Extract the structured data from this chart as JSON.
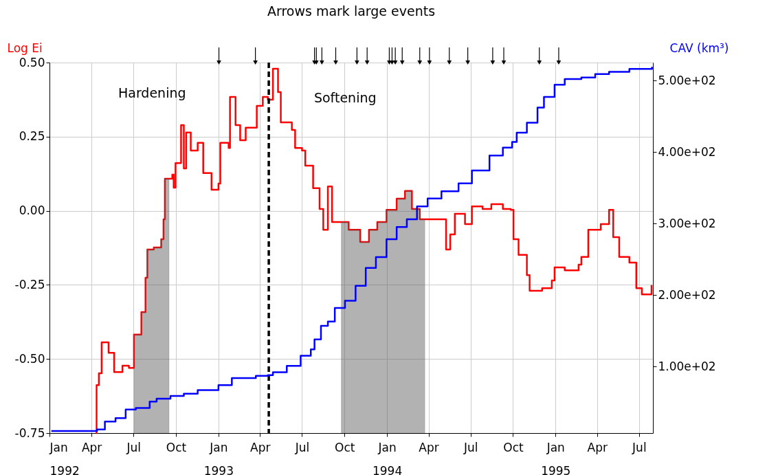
{
  "chart_data": {
    "type": "step",
    "title": "Arrows mark large events",
    "ylabel": "Log Ei",
    "y2label": "CAV (km³)",
    "xlim": [
      "1992-01-01",
      "1995-07-31"
    ],
    "xticks": [
      {
        "value": "1992-01-01",
        "label": "Jan\n1992"
      },
      {
        "value": "1992-04-01",
        "label": "Apr"
      },
      {
        "value": "1992-07-01",
        "label": "Jul"
      },
      {
        "value": "1992-10-01",
        "label": "Oct"
      },
      {
        "value": "1993-01-01",
        "label": "Jan\n1993"
      },
      {
        "value": "1993-04-01",
        "label": "Apr"
      },
      {
        "value": "1993-07-01",
        "label": "Jul"
      },
      {
        "value": "1993-10-01",
        "label": "Oct"
      },
      {
        "value": "1994-01-01",
        "label": "Jan\n1994"
      },
      {
        "value": "1994-04-01",
        "label": "Apr"
      },
      {
        "value": "1994-07-01",
        "label": "Jul"
      },
      {
        "value": "1994-10-01",
        "label": "Oct"
      },
      {
        "value": "1995-01-01",
        "label": "Jan\n1995"
      },
      {
        "value": "1995-04-01",
        "label": "Apr"
      },
      {
        "value": "1995-07-01",
        "label": "Jul"
      }
    ],
    "ylim": [
      -0.75,
      0.5
    ],
    "yticks": [
      {
        "value": -0.75,
        "label": "-0.75"
      },
      {
        "value": -0.5,
        "label": "-0.50"
      },
      {
        "value": -0.25,
        "label": "-0.25"
      },
      {
        "value": 0,
        "label": "0.00"
      },
      {
        "value": 0.25,
        "label": "0.25"
      },
      {
        "value": 0.5,
        "label": "0.50"
      }
    ],
    "y2lim": [
      7,
      525
    ],
    "y2ticks": [
      {
        "value": 100,
        "label": "1.00e+02"
      },
      {
        "value": 200,
        "label": "2.00e+02"
      },
      {
        "value": 300,
        "label": "3.00e+02"
      },
      {
        "value": 400,
        "label": "4.00e+02"
      },
      {
        "value": 500,
        "label": "5.00e+02"
      }
    ],
    "grid": true,
    "series": [
      {
        "color": "#ff0000",
        "x": [
          "1992-04-11",
          "1992-04-12",
          "1992-04-17",
          "1992-04-23",
          "1992-05-08",
          "1992-05-20",
          "1992-06-07",
          "1992-06-21",
          "1992-07-02",
          "1992-07-18",
          "1992-07-27",
          "1992-07-31",
          "1992-08-14",
          "1992-08-30",
          "1992-09-04",
          "1992-09-07",
          "1992-09-23",
          "1992-09-26",
          "1992-09-30",
          "1992-10-12",
          "1992-10-18",
          "1992-10-23",
          "1992-11-02",
          "1992-11-17",
          "1992-11-29",
          "1992-12-17",
          "1993-01-01",
          "1993-01-05",
          "1993-01-23",
          "1993-01-26",
          "1993-02-07",
          "1993-02-17",
          "1993-03-01",
          "1993-03-25",
          "1993-04-07",
          "1993-04-18",
          "1993-04-29",
          "1993-05-10",
          "1993-05-16",
          "1993-06-09",
          "1993-06-16",
          "1993-07-01",
          "1993-07-08",
          "1993-07-25",
          "1993-08-08",
          "1993-08-16",
          "1993-08-26",
          "1993-09-04",
          "1993-10-10",
          "1993-11-04",
          "1993-11-23",
          "1993-12-11",
          "1993-12-31",
          "1994-01-22",
          "1994-02-09",
          "1994-02-24",
          "1994-03-13",
          "1994-05-09",
          "1994-05-18",
          "1994-05-28",
          "1994-06-19",
          "1994-07-04",
          "1994-07-27",
          "1994-08-15",
          "1994-09-09",
          "1994-09-26",
          "1994-10-02",
          "1994-10-13",
          "1994-10-31",
          "1994-11-06",
          "1994-12-03",
          "1994-12-24",
          "1994-12-30",
          "1995-01-21",
          "1995-02-20",
          "1995-02-26",
          "1995-03-13",
          "1995-04-09",
          "1995-04-27",
          "1995-05-06",
          "1995-05-19",
          "1995-06-10",
          "1995-06-25",
          "1995-07-07",
          "1995-07-28"
        ],
        "values": [
          -0.75,
          -0.588,
          -0.548,
          -0.444,
          -0.479,
          -0.544,
          -0.523,
          -0.53,
          -0.418,
          -0.342,
          -0.226,
          -0.131,
          -0.124,
          -0.096,
          -0.029,
          0.108,
          0.122,
          0.078,
          0.161,
          0.289,
          0.143,
          0.264,
          0.203,
          0.229,
          0.127,
          0.071,
          0.092,
          0.229,
          0.212,
          0.384,
          0.289,
          0.238,
          0.28,
          0.354,
          0.384,
          0.375,
          0.479,
          0.4,
          0.298,
          0.273,
          0.212,
          0.203,
          0.152,
          0.076,
          0.006,
          -0.064,
          0.082,
          -0.038,
          -0.064,
          -0.105,
          -0.064,
          -0.038,
          0.003,
          0.041,
          0.067,
          0.006,
          -0.029,
          -0.131,
          -0.08,
          -0.01,
          -0.045,
          0.015,
          0.006,
          0.022,
          0.006,
          0.003,
          -0.096,
          -0.149,
          -0.217,
          -0.27,
          -0.261,
          -0.235,
          -0.191,
          -0.201,
          -0.182,
          -0.156,
          -0.064,
          -0.045,
          0.003,
          -0.089,
          -0.156,
          -0.175,
          -0.261,
          -0.282,
          -0.251
        ]
      },
      {
        "type": "step",
        "color": "#0000ff",
        "axis": "y2",
        "x": [
          "1992-01-05",
          "1992-04-13",
          "1992-04-30",
          "1992-05-23",
          "1992-06-14",
          "1992-07-06",
          "1992-08-05",
          "1992-08-20",
          "1992-09-19",
          "1992-10-18",
          "1992-11-17",
          "1993-01-01",
          "1993-01-30",
          "1993-03-23",
          "1993-04-18",
          "1993-04-29",
          "1993-05-29",
          "1993-06-28",
          "1993-07-20",
          "1993-07-28",
          "1993-08-11",
          "1993-08-26",
          "1993-09-10",
          "1993-10-02",
          "1993-10-25",
          "1993-11-16",
          "1993-12-08",
          "1993-12-31",
          "1994-01-22",
          "1994-02-13",
          "1994-03-07",
          "1994-03-30",
          "1994-04-29",
          "1994-06-05",
          "1994-07-04",
          "1994-08-11",
          "1994-09-09",
          "1994-09-29",
          "1994-10-09",
          "1994-10-31",
          "1994-11-23",
          "1994-12-07",
          "1994-12-30",
          "1995-01-21",
          "1995-02-26",
          "1995-03-28",
          "1995-04-27",
          "1995-06-10",
          "1995-07-29"
        ],
        "values": [
          10,
          12,
          23,
          28,
          40,
          42,
          51,
          55,
          59,
          62,
          67,
          74,
          84,
          87,
          88,
          92,
          101,
          115,
          124,
          138,
          157,
          163,
          182,
          192,
          213,
          238,
          253,
          278,
          295,
          306,
          324,
          335,
          345,
          356,
          374,
          395,
          406,
          414,
          427,
          441,
          462,
          477,
          494,
          502,
          504,
          509,
          512,
          516,
          519
        ]
      },
      {
        "type": "scatter",
        "color": "#000000",
        "marker": "triangle",
        "x": [
          "1993-01-02",
          "1993-03-22",
          "1993-07-28",
          "1993-08-01",
          "1993-08-13",
          "1993-09-12",
          "1993-10-28",
          "1993-11-19",
          "1994-01-06",
          "1994-01-12",
          "1994-01-19",
          "1994-02-03",
          "1994-03-13",
          "1994-04-03",
          "1994-05-16",
          "1994-06-25",
          "1994-08-18",
          "1994-09-11",
          "1994-11-27",
          "1995-01-08"
        ],
        "values": [
          0.5,
          0.5,
          0.5,
          0.5,
          0.5,
          0.5,
          0.5,
          0.5,
          0.5,
          0.5,
          0.5,
          0.5,
          0.5,
          0.5,
          0.5,
          0.5,
          0.5,
          0.5,
          0.5,
          0.5
        ]
      },
      {
        "type": "area",
        "color": "#555555",
        "x": [
          "1992-07-02",
          "1992-07-02",
          "1992-07-18",
          "1992-07-18",
          "1992-07-27",
          "1992-07-27",
          "1992-07-31",
          "1992-07-31",
          "1992-08-14",
          "1992-08-14",
          "1992-08-30",
          "1992-08-30",
          "1992-09-04",
          "1992-09-04",
          "1992-09-07",
          "1992-09-07",
          "1992-09-16",
          "1992-09-16"
        ],
        "values": [
          -0.75,
          -0.418,
          -0.418,
          -0.342,
          -0.342,
          -0.226,
          -0.226,
          -0.131,
          -0.131,
          -0.124,
          -0.124,
          -0.096,
          -0.096,
          -0.029,
          -0.029,
          0.108,
          0.108,
          -0.75
        ]
      },
      {
        "type": "area",
        "color": "#555555",
        "x": [
          "1993-09-24",
          "1993-09-24",
          "1993-10-10",
          "1993-10-10",
          "1993-11-04",
          "1993-11-04",
          "1993-11-23",
          "1993-11-23",
          "1993-12-11",
          "1993-12-11",
          "1993-12-31",
          "1993-12-31",
          "1994-01-22",
          "1994-01-22",
          "1994-02-09",
          "1994-02-09",
          "1994-02-24",
          "1994-02-24",
          "1994-03-13",
          "1994-03-13",
          "1994-03-24",
          "1994-03-24"
        ],
        "values": [
          -0.75,
          -0.038,
          -0.038,
          -0.064,
          -0.064,
          -0.105,
          -0.105,
          -0.064,
          -0.064,
          -0.038,
          -0.038,
          0.003,
          0.003,
          0.041,
          0.041,
          0.067,
          0.067,
          0.006,
          0.006,
          -0.029,
          -0.029,
          -0.75
        ]
      }
    ],
    "ref_lines": [
      {
        "axis": "x",
        "value": "1993-04-20",
        "color": "#000000",
        "line_style": "dashed"
      }
    ],
    "annotations": [
      "Hardening",
      "Softening"
    ]
  }
}
